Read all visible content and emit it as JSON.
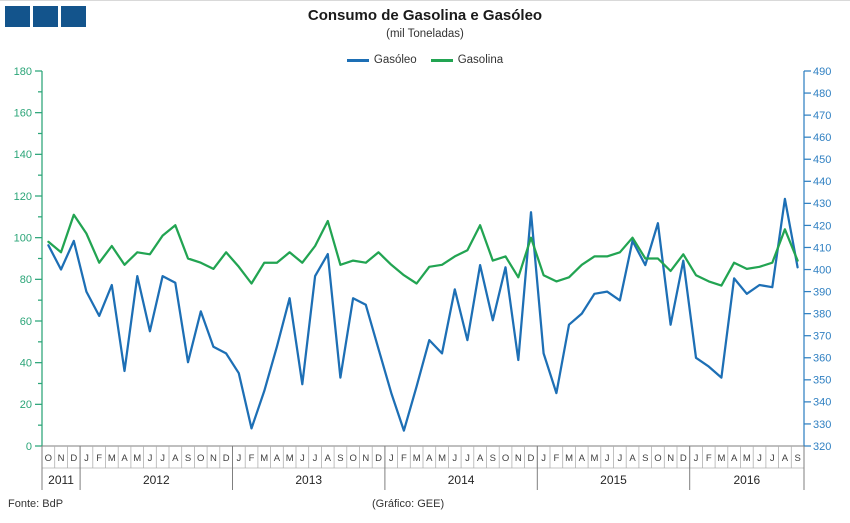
{
  "header": {
    "title": "Consumo de Gasolina e Gasóleo",
    "subtitle": "(mil Toneladas)"
  },
  "footer": {
    "source": "Fonte: BdP",
    "credit": "(Gráfico: GEE)"
  },
  "logo": {
    "color": "#13548c",
    "squares": 3
  },
  "chart_data": {
    "type": "line",
    "title": "Consumo de Gasolina e Gasóleo",
    "subtitle": "(mil Toneladas)",
    "legend_position": "top",
    "grid": false,
    "month_letters": [
      "O",
      "N",
      "D",
      "J",
      "F",
      "M",
      "A",
      "M",
      "J",
      "J",
      "A",
      "S",
      "O",
      "N",
      "D",
      "J",
      "F",
      "M",
      "A",
      "M",
      "J",
      "J",
      "A",
      "S",
      "O",
      "N",
      "D",
      "J",
      "F",
      "M",
      "A",
      "M",
      "J",
      "J",
      "A",
      "S",
      "O",
      "N",
      "D",
      "J",
      "F",
      "M",
      "A",
      "M",
      "J",
      "J",
      "A",
      "S",
      "O",
      "N",
      "D",
      "J",
      "F",
      "M",
      "A",
      "M",
      "J",
      "J",
      "A",
      "S"
    ],
    "years": [
      {
        "label": "2011",
        "months": 3
      },
      {
        "label": "2012",
        "months": 12
      },
      {
        "label": "2013",
        "months": 12
      },
      {
        "label": "2014",
        "months": 12
      },
      {
        "label": "2015",
        "months": 12
      },
      {
        "label": "2016",
        "months": 9
      }
    ],
    "axes": {
      "left": {
        "min": 0,
        "max": 180,
        "label_step": 20,
        "tick_step": 10,
        "color": "#2ba578"
      },
      "right": {
        "min": 320,
        "max": 490,
        "label_step": 10,
        "tick_step": 10,
        "color": "#3080c2"
      },
      "bottom_color": "#7f7f7f",
      "month_grid_color": "#b0b0b0",
      "year_separator_color": "#7f7f7f",
      "month_text_color": "#404040",
      "year_text_color": "#262626"
    },
    "series": [
      {
        "name": "Gasóleo",
        "color": "#1d6fb5",
        "axis": "right",
        "values": [
          411,
          400,
          413,
          390,
          379,
          393,
          354,
          397,
          372,
          397,
          394,
          358,
          381,
          365,
          362,
          353,
          328,
          345,
          365,
          387,
          348,
          397,
          407,
          351,
          387,
          384,
          364,
          344,
          327,
          347,
          368,
          362,
          391,
          368,
          402,
          377,
          401,
          359,
          426,
          362,
          344,
          375,
          380,
          389,
          390,
          386,
          413,
          402,
          421,
          375,
          404,
          360,
          356,
          351,
          396,
          389,
          393,
          392,
          432,
          401
        ]
      },
      {
        "name": "Gasolina",
        "color": "#22a452",
        "axis": "left",
        "values": [
          98,
          93,
          111,
          102,
          88,
          96,
          87,
          93,
          92,
          101,
          106,
          90,
          88,
          85,
          93,
          86,
          78,
          88,
          88,
          93,
          88,
          96,
          108,
          87,
          89,
          88,
          93,
          87,
          82,
          78,
          86,
          87,
          91,
          94,
          106,
          89,
          91,
          81,
          100,
          82,
          79,
          81,
          87,
          91,
          91,
          93,
          100,
          90,
          90,
          84,
          92,
          82,
          79,
          77,
          88,
          85,
          86,
          88,
          104,
          89
        ]
      }
    ]
  }
}
